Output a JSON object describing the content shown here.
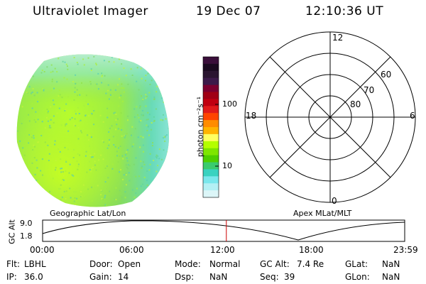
{
  "header": {
    "instrument": "Ultraviolet Imager",
    "date": "19 Dec 07",
    "time": "12:10:36 UT"
  },
  "colorbar": {
    "label": "photon cm⁻²s⁻¹",
    "ticks": [
      "100",
      "10"
    ],
    "colors": [
      "#3a0f3a",
      "#1a0a1f",
      "#2a1530",
      "#3c1a4a",
      "#7a0030",
      "#a00015",
      "#c00010",
      "#e01a1a",
      "#ff4400",
      "#ff8c00",
      "#ffb400",
      "#ffff60",
      "#b4ff00",
      "#7ee600",
      "#4ecf00",
      "#3acb6e",
      "#39d2c0",
      "#7ae7ec",
      "#b4f0f4",
      "#dcf6f8"
    ]
  },
  "polar": {
    "mlt_labels": {
      "top": "12",
      "right": "6",
      "bottom": "0",
      "left": "18"
    },
    "lat_labels": [
      "60",
      "70",
      "80"
    ]
  },
  "timeline": {
    "left_title": "Geographic Lat/Lon",
    "right_title": "Apex MLat/MLT",
    "axis_label": "GC Alt",
    "y_max": "9.0",
    "y_min": "1.8",
    "ticks": [
      "00:00",
      "06:00",
      "12:00",
      "18:00",
      "23:59"
    ],
    "current_time_hours": 12.18
  },
  "status": {
    "rows": [
      [
        {
          "label": "Flt:",
          "value": "LBHL"
        },
        {
          "label": "Door:",
          "value": "Open"
        },
        {
          "label": "Mode:",
          "value": "Normal"
        },
        {
          "label": "GC Alt:",
          "value": "7.4 Re"
        },
        {
          "label": "GLat:",
          "value": "NaN"
        }
      ],
      [
        {
          "label": "IP:",
          "value": "36.0"
        },
        {
          "label": "Gain:",
          "value": "14"
        },
        {
          "label": "Dsp:",
          "value": "NaN"
        },
        {
          "label": "Seq:",
          "value": "39"
        },
        {
          "label": "GLon:",
          "value": "NaN"
        }
      ]
    ]
  },
  "colors": {
    "image_base": "#8ee05a",
    "image_edge": "#5ed8c8",
    "cursor": "#cc0000"
  }
}
